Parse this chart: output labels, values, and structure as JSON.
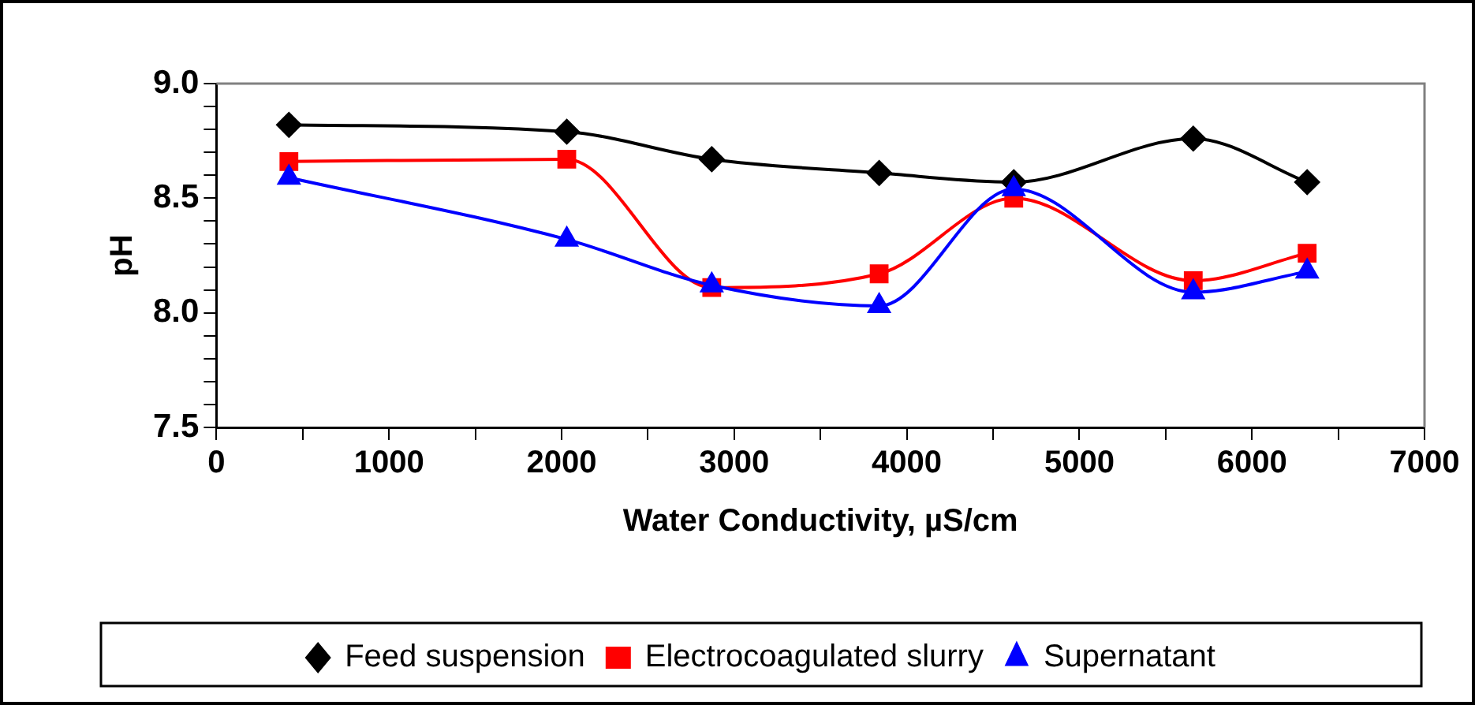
{
  "chart_data": {
    "type": "line",
    "xlabel": "Water Conductivity, µS/cm",
    "ylabel": "pH",
    "x": [
      420,
      2030,
      2870,
      3840,
      4620,
      5660,
      6320
    ],
    "series": [
      {
        "name": "Feed suspension",
        "color": "#000000",
        "marker": "diamond",
        "values": [
          8.82,
          8.79,
          8.67,
          8.61,
          8.57,
          8.76,
          8.57
        ]
      },
      {
        "name": "Electrocoagulated slurry",
        "color": "#ff0000",
        "marker": "square",
        "values": [
          8.66,
          8.67,
          8.11,
          8.17,
          8.5,
          8.14,
          8.26
        ]
      },
      {
        "name": "Supernatant",
        "color": "#0000ff",
        "marker": "triangle",
        "values": [
          8.59,
          8.32,
          8.12,
          8.03,
          8.54,
          8.09,
          8.18
        ]
      }
    ],
    "xlim": [
      0,
      7000
    ],
    "xticks": [
      0,
      {
        "value": 500,
        "label": null
      },
      1000,
      {
        "value": 1500,
        "label": null
      },
      2000,
      {
        "value": 2500,
        "label": null
      },
      3000,
      {
        "value": 3500,
        "label": null
      },
      4000,
      {
        "value": 4500,
        "label": null
      },
      5000,
      {
        "value": 5500,
        "label": null
      },
      6000,
      {
        "value": 6500,
        "label": null
      },
      7000
    ],
    "ylim": [
      7.5,
      9.0
    ],
    "yticks": [
      {
        "value": 7.5,
        "label": "7.5"
      },
      {
        "value": 7.6,
        "label": null
      },
      {
        "value": 7.7,
        "label": null
      },
      {
        "value": 7.8,
        "label": null
      },
      {
        "value": 7.9,
        "label": null
      },
      {
        "value": 8.0,
        "label": "8.0"
      },
      {
        "value": 8.1,
        "label": null
      },
      {
        "value": 8.2,
        "label": null
      },
      {
        "value": 8.3,
        "label": null
      },
      {
        "value": 8.4,
        "label": null
      },
      {
        "value": 8.5,
        "label": "8.5"
      },
      {
        "value": 8.6,
        "label": null
      },
      {
        "value": 8.7,
        "label": null
      },
      {
        "value": 8.8,
        "label": null
      },
      {
        "value": 8.9,
        "label": null
      },
      {
        "value": 9.0,
        "label": "9.0"
      }
    ],
    "legend": "bottom",
    "line_style": "solid"
  }
}
